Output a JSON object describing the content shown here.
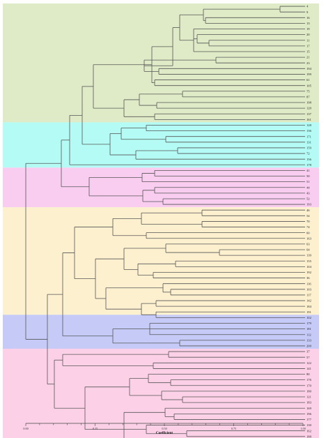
{
  "chart_data": {
    "type": "dendrogram",
    "xlabel": "Coefficient",
    "xlim": [
      0.0,
      1.0
    ],
    "axis_ticks": [
      "0.00",
      "0.25",
      "0.50",
      "0.75",
      "1.00"
    ],
    "leaves": [
      "4",
      "9",
      "16",
      "13",
      "19",
      "20",
      "11",
      "17",
      "15",
      "21",
      "23",
      "194",
      "199",
      "61",
      "105",
      "75",
      "87",
      "198",
      "120",
      "137",
      "161",
      "128",
      "136",
      "171",
      "131",
      "159",
      "72",
      "156",
      "178",
      "41",
      "50",
      "51",
      "44",
      "43",
      "52",
      "193",
      "46",
      "54",
      "70",
      "74",
      "60",
      "163",
      "63",
      "64",
      "139",
      "155",
      "104",
      "192",
      "36",
      "116",
      "103",
      "117",
      "142",
      "184",
      "191",
      "102",
      "179",
      "181",
      "112",
      "133",
      "200",
      "37",
      "57",
      "122",
      "141",
      "80",
      "176",
      "170",
      "180",
      "121",
      "183",
      "169",
      "196",
      "177",
      "130",
      "162",
      "188",
      "186",
      "197",
      "187"
    ],
    "clusters": [
      {
        "color": "#dfeac6",
        "leaves": 21
      },
      {
        "color": "#b4fbf5",
        "leaves": 8
      },
      {
        "color": "#f8cdf0",
        "leaves": 7
      },
      {
        "color": "#fcf0cf",
        "leaves": 19
      },
      {
        "color": "#c5cbf6",
        "leaves": 6
      },
      {
        "color": "#fcd1e8",
        "leaves": 19
      }
    ]
  }
}
